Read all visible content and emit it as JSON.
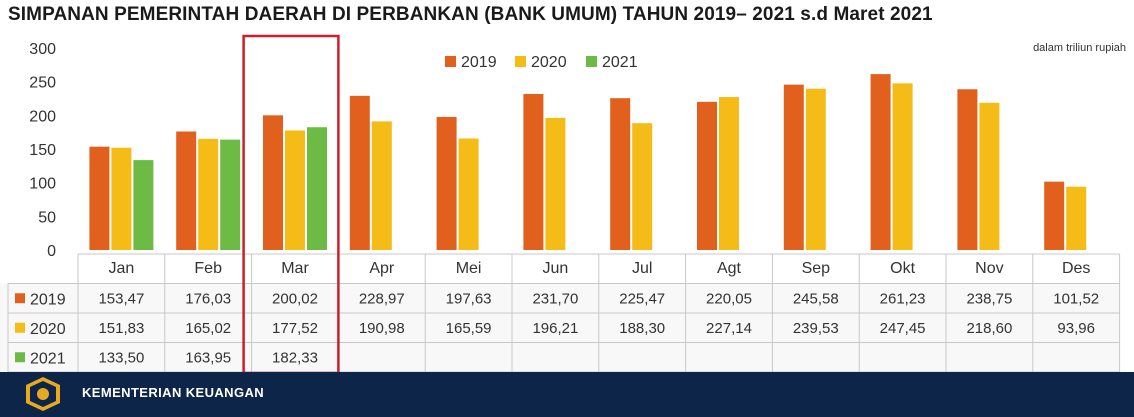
{
  "chart_data": {
    "type": "bar",
    "title": "SIMPANAN PEMERINTAH DAERAH DI PERBANKAN (BANK UMUM) TAHUN 2019– 2021 s.d Maret 2021",
    "unit_note": "dalam triliun rupiah",
    "categories": [
      "Jan",
      "Feb",
      "Mar",
      "Apr",
      "Mei",
      "Jun",
      "Jul",
      "Agt",
      "Sep",
      "Okt",
      "Nov",
      "Des"
    ],
    "series": [
      {
        "name": "2019",
        "color": "#e2601e",
        "values": [
          153.47,
          176.03,
          200.02,
          228.97,
          197.63,
          231.7,
          225.47,
          220.05,
          245.58,
          261.23,
          238.75,
          101.52
        ],
        "labels": [
          "153,47",
          "176,03",
          "200,02",
          "228,97",
          "197,63",
          "231,70",
          "225,47",
          "220,05",
          "245,58",
          "261,23",
          "238,75",
          "101,52"
        ]
      },
      {
        "name": "2020",
        "color": "#f5bb17",
        "values": [
          151.83,
          165.02,
          177.52,
          190.98,
          165.59,
          196.21,
          188.3,
          227.14,
          239.53,
          247.45,
          218.6,
          93.96
        ],
        "labels": [
          "151,83",
          "165,02",
          "177,52",
          "190,98",
          "165,59",
          "196,21",
          "188,30",
          "227,14",
          "239,53",
          "247,45",
          "218,60",
          "93,96"
        ]
      },
      {
        "name": "2021",
        "color": "#6dbb45",
        "values": [
          133.5,
          163.95,
          182.33,
          null,
          null,
          null,
          null,
          null,
          null,
          null,
          null,
          null
        ],
        "labels": [
          "133,50",
          "163,95",
          "182,33",
          "",
          "",
          "",
          "",
          "",
          "",
          "",
          "",
          ""
        ]
      }
    ],
    "ylim": [
      0,
      300
    ],
    "yticks": [
      0,
      50,
      100,
      150,
      200,
      250,
      300
    ],
    "grid": false,
    "legend_position": "top-center",
    "highlight": {
      "category": "Mar",
      "color": "#cc1f2a"
    }
  },
  "footer": {
    "text": "KEMENTERIAN KEUANGAN"
  }
}
